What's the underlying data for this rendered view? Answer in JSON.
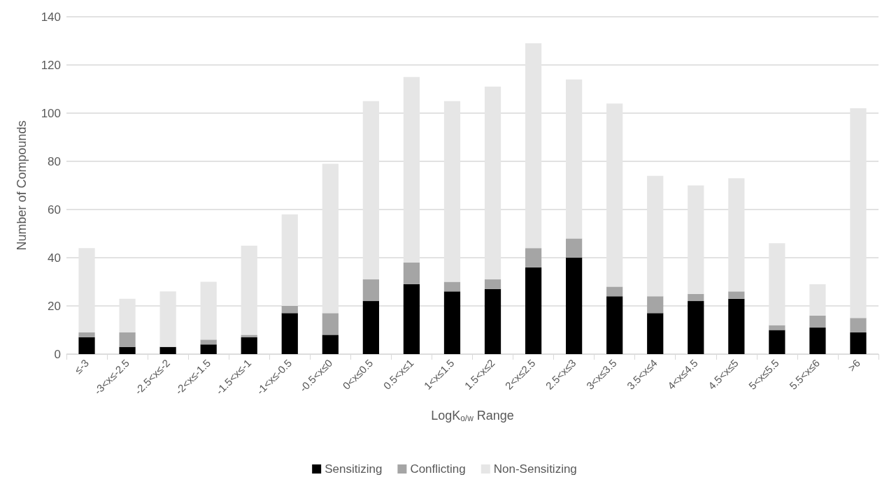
{
  "chart_data": {
    "type": "bar",
    "stacked": true,
    "xlabel": "LogK$_{o/w}$ Range",
    "ylabel": "Number of Compounds",
    "categories": [
      "≤-3",
      "-3<x≤-2.5",
      "-2.5<x≤-2",
      "-2<x≤-1.5",
      "-1.5<x≤-1",
      "-1<x≤-0.5",
      "-0.5<x≤0",
      "0<x≤0.5",
      "0.5<x≤1",
      "1<x≤1.5",
      "1.5<x≤2",
      "2<x≤2.5",
      "2.5<x≤3",
      "3<x≤3.5",
      "3.5<x≤4",
      "4<x≤4.5",
      "4.5<x≤5",
      "5<x≤5.5",
      "5.5<x≤6",
      ">6"
    ],
    "series": [
      {
        "name": "Sensitizing",
        "color": "#000000",
        "values": [
          7,
          3,
          3,
          4,
          7,
          17,
          8,
          22,
          29,
          26,
          27,
          36,
          40,
          24,
          17,
          22,
          23,
          10,
          11,
          9
        ]
      },
      {
        "name": "Conflicting",
        "color": "#a5a5a5",
        "values": [
          2,
          6,
          0,
          2,
          1,
          3,
          9,
          9,
          9,
          4,
          4,
          8,
          8,
          4,
          7,
          3,
          3,
          2,
          5,
          6
        ]
      },
      {
        "name": "Non-Sensitizing",
        "color": "#e6e6e6",
        "values": [
          35,
          14,
          23,
          24,
          37,
          38,
          62,
          74,
          77,
          75,
          80,
          85,
          66,
          76,
          50,
          45,
          47,
          34,
          13,
          87
        ]
      }
    ],
    "ylim": [
      0,
      140
    ],
    "yticks": [
      0,
      20,
      40,
      60,
      80,
      100,
      120,
      140
    ],
    "grid": "y",
    "legend": "bottom"
  }
}
